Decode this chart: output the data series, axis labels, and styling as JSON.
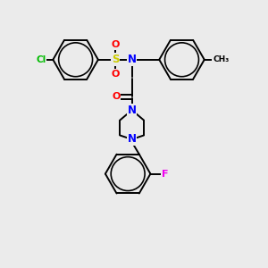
{
  "background_color": "#ebebeb",
  "atom_colors": {
    "N": "#0000ff",
    "O": "#ff0000",
    "S": "#cccc00",
    "Cl": "#00bb00",
    "F": "#ee00ee",
    "C": "#000000"
  },
  "bond_color": "#000000",
  "bond_width": 1.4,
  "figsize": [
    3.0,
    3.0
  ],
  "dpi": 100
}
